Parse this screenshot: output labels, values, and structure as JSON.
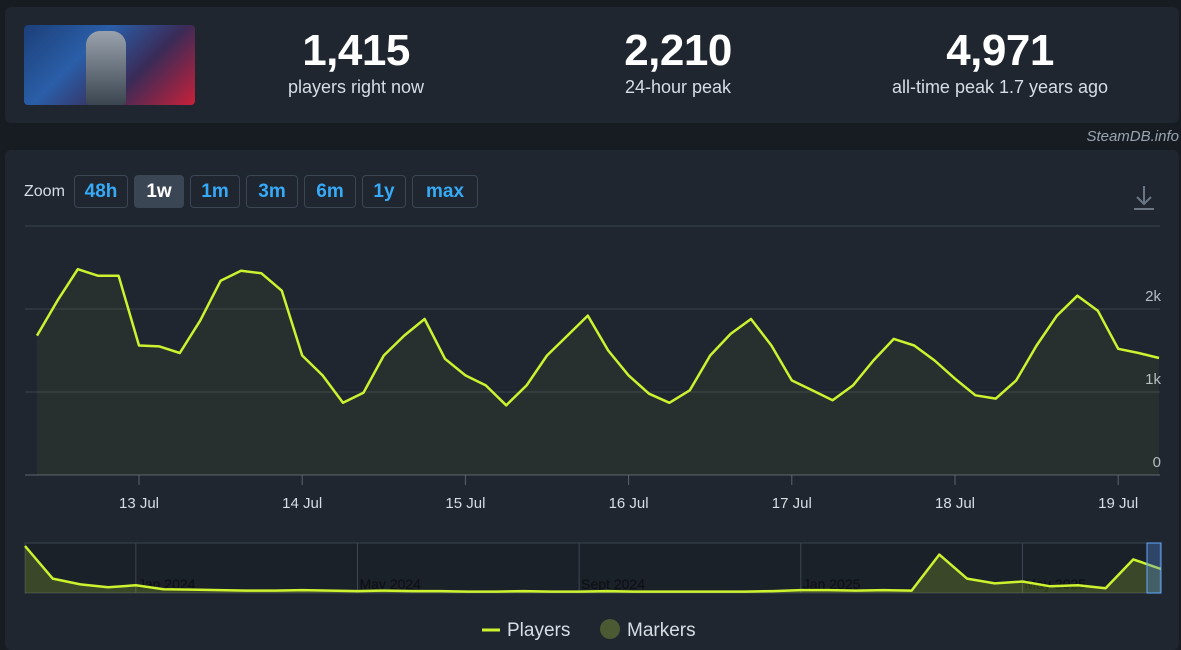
{
  "header": {
    "stats": [
      {
        "value": "1,415",
        "label": "players right now"
      },
      {
        "value": "2,210",
        "label": "24-hour peak"
      },
      {
        "value": "4,971",
        "label": "all-time peak 1.7 years ago"
      }
    ],
    "credit": "SteamDB.info"
  },
  "zoom": {
    "label": "Zoom",
    "options": [
      "48h",
      "1w",
      "1m",
      "3m",
      "6m",
      "1y",
      "max"
    ],
    "active_index": 1
  },
  "chart_data": [
    {
      "type": "line",
      "categories": [
        null,
        null,
        null,
        null,
        null,
        "13 Jul",
        null,
        null,
        null,
        null,
        null,
        null,
        null,
        "14 Jul",
        null,
        null,
        null,
        null,
        null,
        null,
        null,
        "15 Jul",
        null,
        null,
        null,
        null,
        null,
        null,
        null,
        "16 Jul",
        null,
        null,
        null,
        null,
        null,
        null,
        null,
        "17 Jul",
        null,
        null,
        null,
        null,
        null,
        null,
        null,
        "18 Jul",
        null,
        null,
        null,
        null,
        null,
        null,
        null,
        "19 Jul",
        null,
        null
      ],
      "series": [
        {
          "name": "Players",
          "color": "#cdf22f",
          "values": [
            1680,
            2100,
            2480,
            2400,
            2400,
            1560,
            1550,
            1470,
            1860,
            2340,
            2460,
            2430,
            2220,
            1440,
            1200,
            870,
            990,
            1440,
            1680,
            1880,
            1400,
            1200,
            1080,
            840,
            1080,
            1440,
            1680,
            1920,
            1500,
            1200,
            980,
            870,
            1020,
            1440,
            1700,
            1880,
            1560,
            1140,
            1020,
            900,
            1080,
            1380,
            1640,
            1560,
            1380,
            1160,
            960,
            920,
            1140,
            1560,
            1920,
            2160,
            1980,
            1520,
            1470,
            1410
          ]
        }
      ],
      "markers": {
        "name": "Markers",
        "color": "#4b5a33"
      },
      "ylim": [
        0,
        3000
      ],
      "yticks": [
        0,
        {
          "value": 1000,
          "label": "1k"
        },
        {
          "value": 2000,
          "label": "2k"
        }
      ],
      "grid": true,
      "legend": "bottom"
    },
    {
      "type": "area",
      "categories": [
        null,
        null,
        null,
        null,
        "Jan 2024",
        null,
        null,
        null,
        null,
        null,
        null,
        null,
        "May 2024",
        null,
        null,
        null,
        null,
        null,
        null,
        null,
        "Sept 2024",
        null,
        null,
        null,
        null,
        null,
        null,
        null,
        "Jan 2025",
        null,
        null,
        null,
        null,
        null,
        null,
        null,
        "May 2025",
        null,
        null,
        null,
        null,
        null
      ],
      "values": [
        4900,
        1500,
        900,
        600,
        800,
        400,
        350,
        300,
        250,
        250,
        300,
        250,
        200,
        250,
        200,
        200,
        150,
        150,
        200,
        150,
        150,
        200,
        150,
        150,
        150,
        150,
        150,
        200,
        300,
        300,
        250,
        300,
        250,
        4000,
        1500,
        1000,
        1200,
        700,
        800,
        500,
        3500,
        2500
      ],
      "color": "#cdf22f",
      "ylim": [
        0,
        5000
      ]
    }
  ]
}
